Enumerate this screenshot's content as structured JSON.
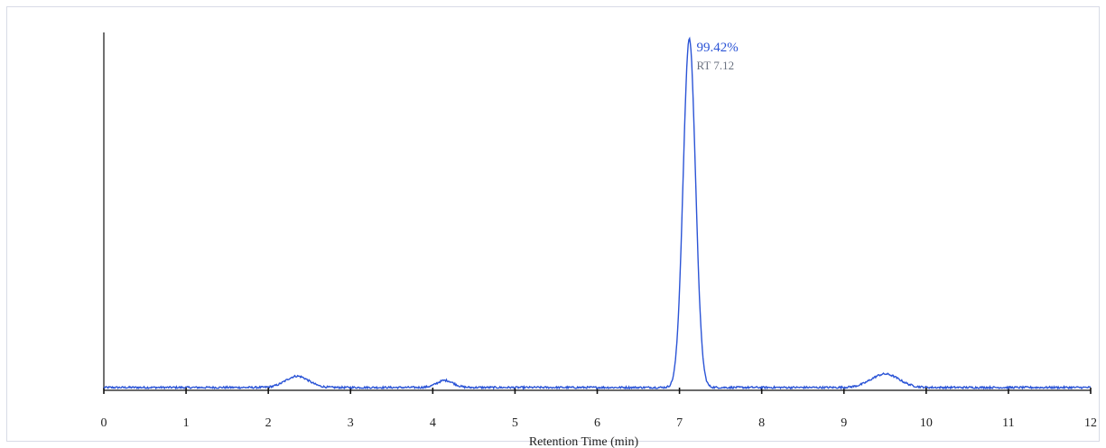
{
  "chart_data": {
    "type": "line",
    "title": "",
    "xlabel": "Retention Time (min)",
    "ylabel": "",
    "xlim": [
      0,
      12
    ],
    "ylim": [
      0,
      100
    ],
    "x_ticks": [
      "0",
      "1",
      "2",
      "3",
      "4",
      "5",
      "6",
      "7",
      "8",
      "9",
      "10",
      "11",
      "12"
    ],
    "grid": false,
    "colors": {
      "line": "#2b54d6",
      "axis": "#111111",
      "frame": "#d8dbe6"
    },
    "baseline": 0.8,
    "peaks": [
      {
        "rt": 2.35,
        "height": 3.2,
        "sigma": 0.14
      },
      {
        "rt": 4.15,
        "height": 2.0,
        "sigma": 0.1
      },
      {
        "rt": 7.12,
        "height": 98.5,
        "sigma": 0.075
      },
      {
        "rt": 9.5,
        "height": 3.8,
        "sigma": 0.17
      }
    ],
    "annotations": [
      {
        "x": 7.12,
        "pct_label": "99.42%",
        "rt_label": "RT 7.12"
      }
    ]
  }
}
